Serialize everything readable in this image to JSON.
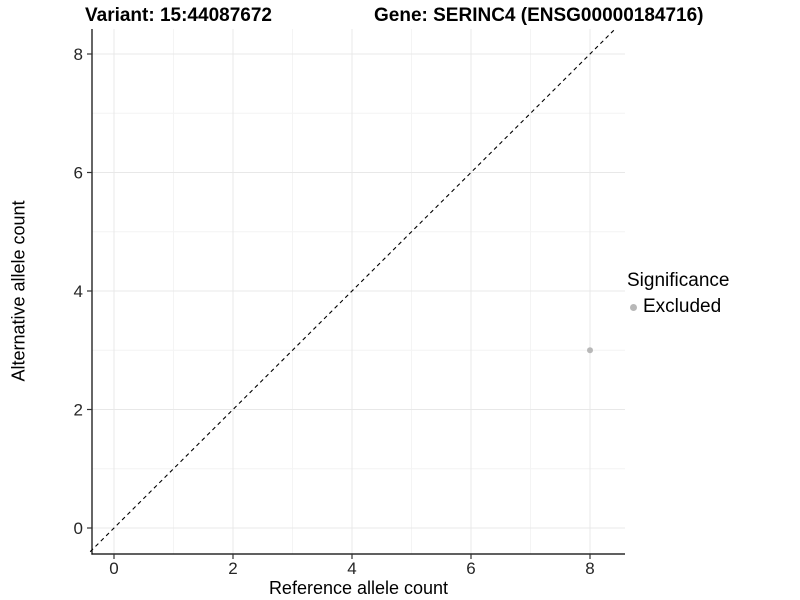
{
  "titles": {
    "variant": "Variant: 15:44087672",
    "gene": "Gene: SERINC4 (ENSG00000184716)"
  },
  "chart_data": {
    "type": "scatter",
    "xlabel": "Reference allele count",
    "ylabel": "Alternative allele count",
    "xlim": [
      -0.42,
      8.59
    ],
    "ylim": [
      -0.44,
      8.42
    ],
    "x_ticks": [
      0,
      2,
      4,
      6,
      8
    ],
    "y_ticks": [
      0,
      2,
      4,
      6,
      8
    ],
    "x_minor_ticks": [
      1,
      3,
      5,
      7
    ],
    "y_minor_ticks": [
      1,
      3,
      5,
      7
    ],
    "grid": "major+minor",
    "identity_line": {
      "style": "dashed",
      "from": -0.4,
      "to": 8.4,
      "color": "#000000"
    },
    "series": [
      {
        "name": "Excluded",
        "color": "#b8b8b8",
        "points": [
          {
            "x": 8,
            "y": 3
          }
        ]
      }
    ],
    "legend": {
      "title": "Significance",
      "position": "right",
      "entries": [
        {
          "label": "Excluded",
          "color": "#b8b8b8"
        }
      ]
    },
    "colors": {
      "background": "#ffffff",
      "grid_major": "#e8e8e8",
      "grid_minor": "#f4f4f4",
      "axis_line": "#000000",
      "tick": "#333333",
      "tick_label": "#262626",
      "point": "#b8b8b8"
    }
  }
}
